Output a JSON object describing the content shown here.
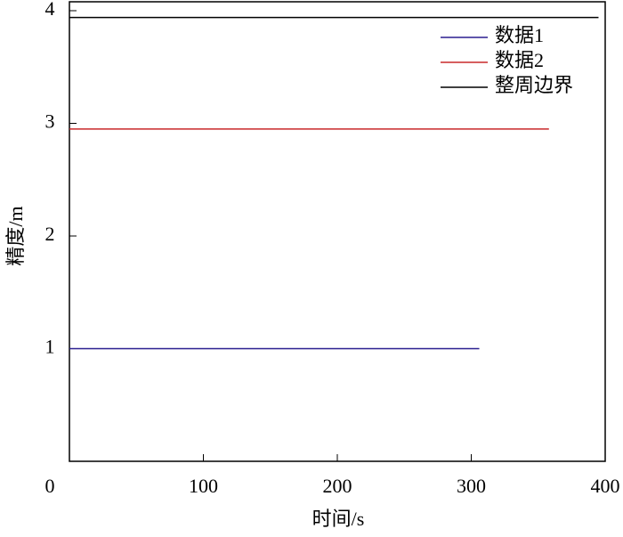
{
  "chart_data": {
    "type": "line",
    "xlabel": "时间/s",
    "ylabel": "精度/m",
    "xlim": [
      0,
      400
    ],
    "xticks": [
      0,
      100,
      200,
      300,
      400
    ],
    "ylim": [
      0,
      4
    ],
    "yticks": [
      1,
      2,
      3,
      4
    ],
    "legend": "upper right",
    "series": [
      {
        "name": "数据1",
        "color": "#2b1f8f",
        "x": [
          0,
          306
        ],
        "values": [
          1,
          1
        ]
      },
      {
        "name": "数据2",
        "color": "#c8282a",
        "x": [
          0,
          358
        ],
        "values": [
          2.95,
          2.95
        ]
      },
      {
        "name": "整周边界",
        "color": "#000000",
        "x": [
          0,
          395
        ],
        "values": [
          3.94,
          3.94
        ]
      }
    ]
  }
}
